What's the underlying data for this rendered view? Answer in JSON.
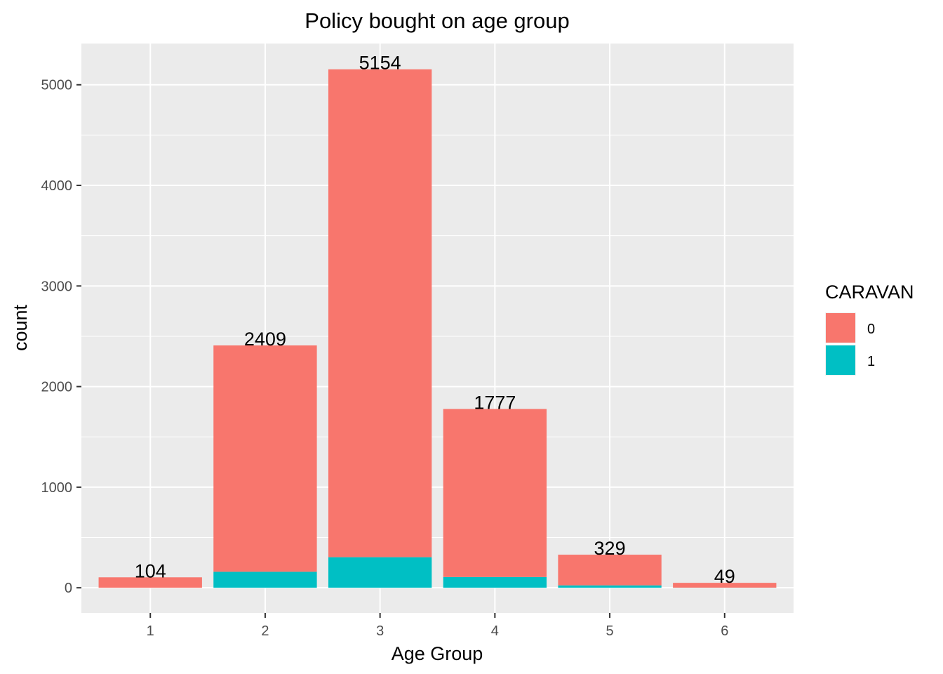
{
  "chart_data": {
    "type": "bar",
    "stacked": true,
    "title": "Policy bought on age group",
    "xlabel": "Age Group",
    "ylabel": "count",
    "categories": [
      "1",
      "2",
      "3",
      "4",
      "5",
      "6"
    ],
    "series": [
      {
        "name": "0",
        "color": "#F8766D",
        "values": [
          104,
          2250,
          4850,
          1670,
          305,
          48
        ]
      },
      {
        "name": "1",
        "color": "#00BFC4",
        "values": [
          0,
          159,
          304,
          107,
          24,
          1
        ]
      }
    ],
    "totals": [
      104,
      2409,
      5154,
      1777,
      329,
      49
    ],
    "data_labels": [
      "104",
      "2409",
      "5154",
      "1777",
      "329",
      "49"
    ],
    "y_ticks": [
      0,
      1000,
      2000,
      3000,
      4000,
      5000
    ],
    "y_tick_labels": [
      "0",
      "1000",
      "2000",
      "3000",
      "4000",
      "5000"
    ],
    "ylim": [
      -250,
      5410
    ],
    "grid": true,
    "legend": {
      "title": "CARAVAN",
      "position": "right"
    }
  }
}
